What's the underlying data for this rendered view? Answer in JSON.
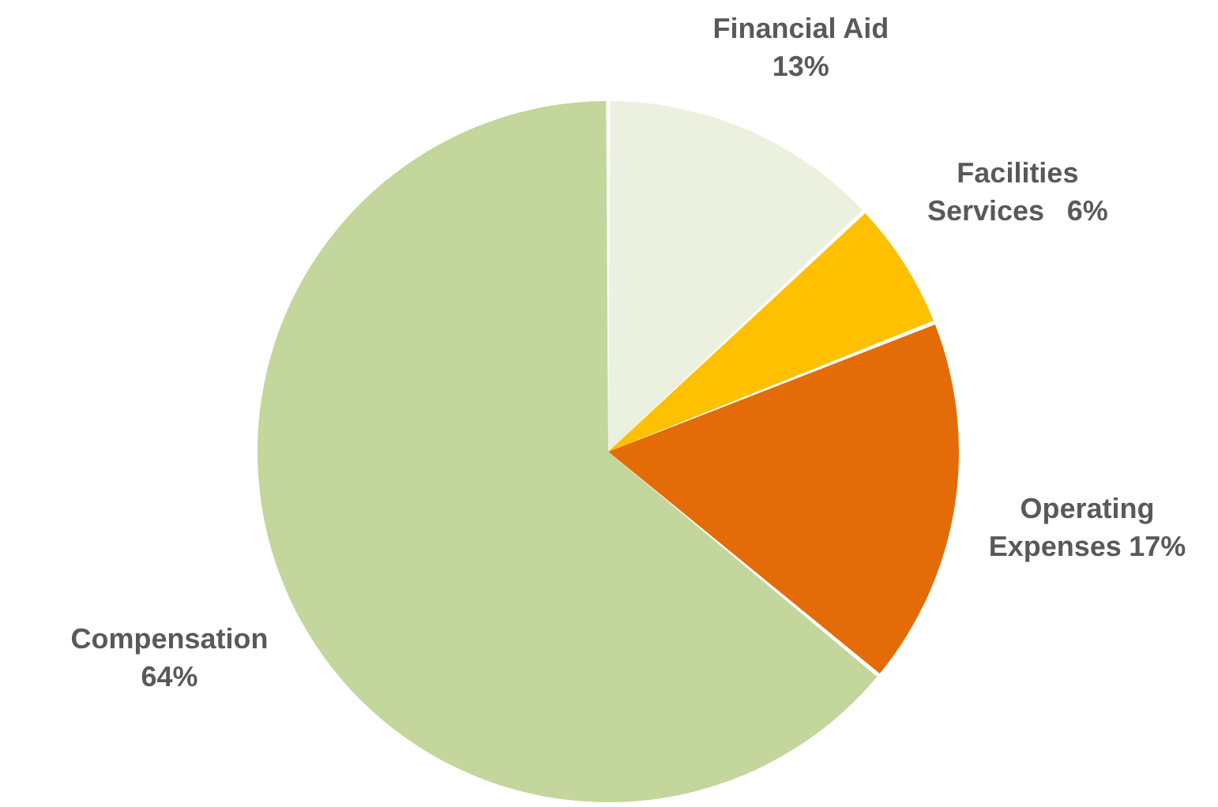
{
  "chart_data": {
    "type": "pie",
    "categories": [
      "Financial Aid",
      "Facilities Services",
      "Operating Expenses",
      "Compensation"
    ],
    "values": [
      13,
      6,
      17,
      64
    ],
    "colors": [
      "#ebf1de",
      "#ffc000",
      "#e36c09",
      "#c3d69b"
    ],
    "value_labels": [
      "13%",
      "6%",
      "17%",
      "64%"
    ]
  }
}
